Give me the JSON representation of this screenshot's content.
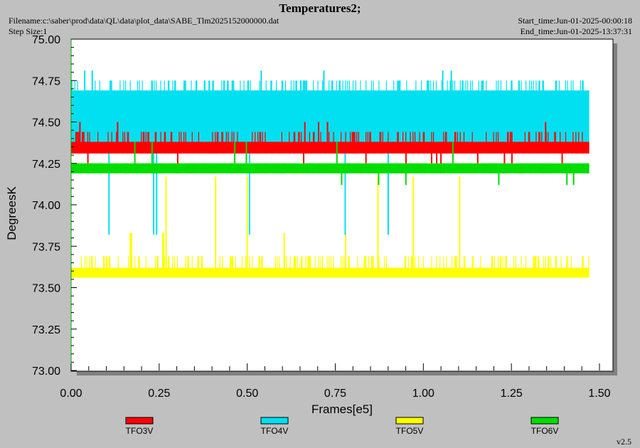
{
  "header": {
    "title": "Temperatures2;",
    "filename": "Filename:c:\\saber\\prod\\data\\QL\\data\\plot_data\\SABE_Tlm2025152000000.dat",
    "step_size": "Step Size:1",
    "start_time": "Start_time:Jun-01-2025-00:00:18",
    "end_time": "End_time:Jun-01-2025-13:37:31"
  },
  "version": "v2.5",
  "chart_data": {
    "type": "line",
    "title": "Temperatures2;",
    "xlabel": "Frames[e5]",
    "ylabel": "DegreesK",
    "xlim": [
      0,
      1.5
    ],
    "ylim": [
      73.0,
      75.0
    ],
    "x_ticks": [
      "0.00",
      "0.25",
      "0.50",
      "0.75",
      "1.00",
      "1.25",
      "1.50"
    ],
    "y_ticks": [
      "73.00",
      "73.25",
      "73.50",
      "73.75",
      "74.00",
      "74.25",
      "74.50",
      "74.75",
      "75.00"
    ],
    "grid": false,
    "legend_position": "bottom",
    "x_range_data": [
      0.0,
      1.47
    ],
    "series": [
      {
        "name": "TFO3V",
        "color": "#ff0000",
        "band": [
          74.31,
          74.38
        ],
        "typical_range": [
          74.31,
          74.44
        ],
        "spikes": [
          74.19,
          74.25,
          74.5
        ]
      },
      {
        "name": "TFO4V",
        "color": "#00e0f0",
        "band": [
          74.38,
          74.69
        ],
        "typical_range": [
          74.31,
          74.75
        ],
        "spikes": [
          74.81,
          73.82
        ]
      },
      {
        "name": "TFO5V",
        "color": "#ffff00",
        "band": [
          73.56,
          73.62
        ],
        "typical_range": [
          73.56,
          73.69
        ],
        "spikes": [
          73.83,
          74.17
        ]
      },
      {
        "name": "TFO6V",
        "color": "#00dd00",
        "band": [
          74.19,
          74.25
        ],
        "typical_range": [
          74.19,
          74.25
        ],
        "spikes": [
          74.12,
          74.38
        ]
      }
    ]
  }
}
